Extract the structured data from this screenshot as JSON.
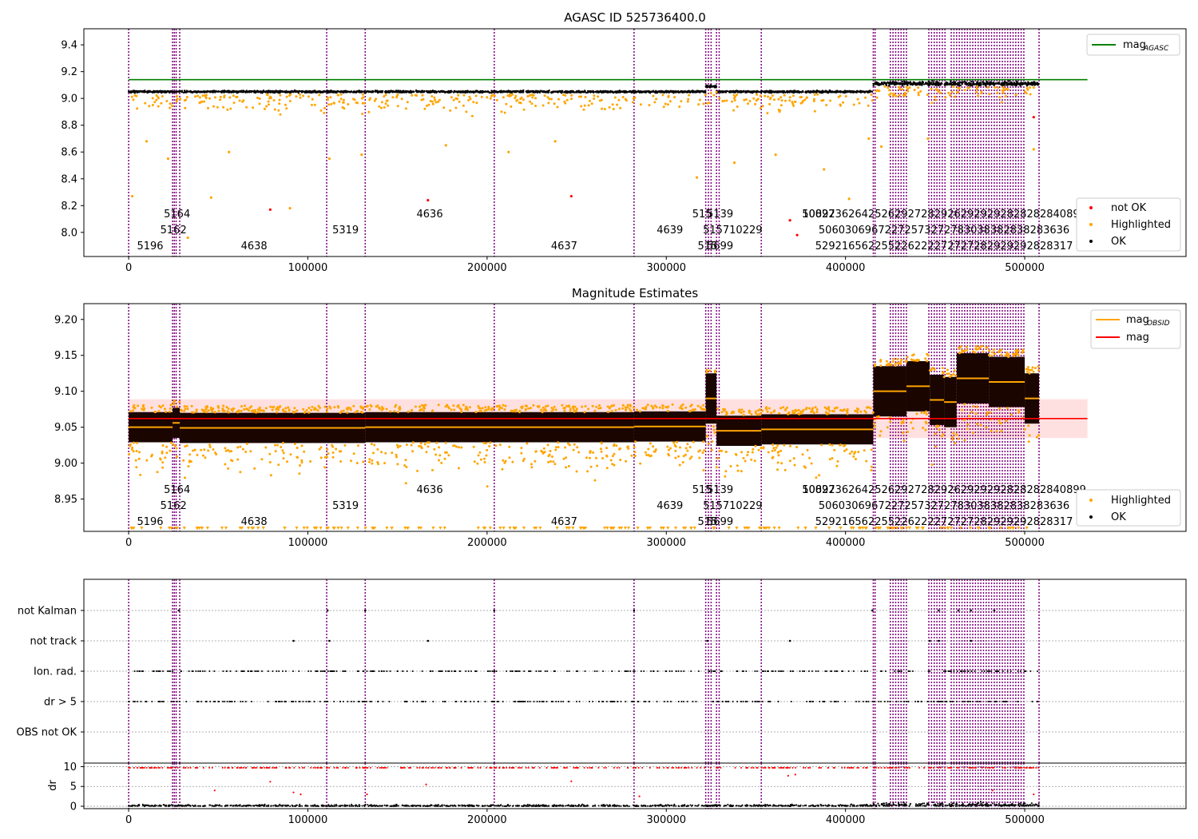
{
  "chart_data": [
    {
      "type": "scatter",
      "title": "AGASC ID 525736400.0",
      "xlabel": "",
      "ylabel": "",
      "xlim": [
        -25000,
        590000
      ],
      "ylim": [
        7.82,
        9.52
      ],
      "xticks": [
        0,
        100000,
        200000,
        300000,
        400000,
        500000
      ],
      "xtick_labels": [
        "0",
        "100000",
        "200000",
        "300000",
        "400000",
        "500000"
      ],
      "yticks": [
        8.0,
        8.2,
        8.4,
        8.6,
        8.8,
        9.0,
        9.2,
        9.4
      ],
      "ytick_labels": [
        "8.0",
        "8.2",
        "8.4",
        "8.6",
        "8.8",
        "9.0",
        "9.2",
        "9.4"
      ],
      "hline": {
        "name": "mag_AGASC",
        "y": 9.14,
        "x_range": [
          0,
          535000
        ],
        "color": "#008000"
      },
      "legend_lines": {
        "label": "mag",
        "subscript": "AGASC",
        "position": "top-right"
      },
      "legend_points": {
        "entries": [
          "not OK",
          "Highlighted",
          "OK"
        ],
        "colors": [
          "#ff0000",
          "#ffa500",
          "#000000"
        ],
        "position": "bottom-right"
      },
      "segments": [
        {
          "x0": 0,
          "x1": 322000,
          "ok_mag": 9.05,
          "spread": 0.02
        },
        {
          "x0": 322000,
          "x1": 328000,
          "ok_mag": 9.09,
          "spread": 0.03
        },
        {
          "x0": 328000,
          "x1": 415500,
          "ok_mag": 9.05,
          "spread": 0.02
        },
        {
          "x0": 415500,
          "x1": 508000,
          "ok_mag": 9.11,
          "spread": 0.04
        }
      ],
      "not_ok_points": [
        {
          "x": 79000,
          "y": 8.17
        },
        {
          "x": 167000,
          "y": 8.24
        },
        {
          "x": 247000,
          "y": 8.27
        },
        {
          "x": 369000,
          "y": 8.09
        },
        {
          "x": 373000,
          "y": 7.98
        },
        {
          "x": 505000,
          "y": 8.86
        }
      ],
      "highlighted_outliers": [
        {
          "x": 2000,
          "y": 8.27
        },
        {
          "x": 10000,
          "y": 8.68
        },
        {
          "x": 22000,
          "y": 8.55
        },
        {
          "x": 33000,
          "y": 7.96
        },
        {
          "x": 46000,
          "y": 8.26
        },
        {
          "x": 56000,
          "y": 8.6
        },
        {
          "x": 90000,
          "y": 8.18
        },
        {
          "x": 112000,
          "y": 8.55
        },
        {
          "x": 130000,
          "y": 8.58
        },
        {
          "x": 177000,
          "y": 8.65
        },
        {
          "x": 212000,
          "y": 8.6
        },
        {
          "x": 238000,
          "y": 8.68
        },
        {
          "x": 317000,
          "y": 8.41
        },
        {
          "x": 338000,
          "y": 8.52
        },
        {
          "x": 361000,
          "y": 8.58
        },
        {
          "x": 388000,
          "y": 8.47
        },
        {
          "x": 402000,
          "y": 8.25
        },
        {
          "x": 413000,
          "y": 8.7
        },
        {
          "x": 420000,
          "y": 8.64
        },
        {
          "x": 446000,
          "y": 8.7
        },
        {
          "x": 505000,
          "y": 8.62
        }
      ],
      "obsid_labels": [
        {
          "text": "5196",
          "x": 12000,
          "row": 3
        },
        {
          "text": "5162",
          "x": 25000,
          "row": 2
        },
        {
          "text": "5164",
          "x": 27000,
          "row": 1
        },
        {
          "text": "4638",
          "x": 70000,
          "row": 3
        },
        {
          "text": "5319",
          "x": 121000,
          "row": 2
        },
        {
          "text": "4636",
          "x": 168000,
          "row": 1
        },
        {
          "text": "4637",
          "x": 243000,
          "row": 3
        },
        {
          "text": "4639",
          "x": 302000,
          "row": 2
        },
        {
          "text": "515",
          "x": 320000,
          "row": 1
        },
        {
          "text": "5139",
          "x": 330000,
          "row": 1
        },
        {
          "text": "515710229",
          "x": 337000,
          "row": 2
        },
        {
          "text": "515",
          "x": 323000,
          "row": 3
        },
        {
          "text": "5699",
          "x": 330000,
          "row": 3
        },
        {
          "text": "10892",
          "x": 385000,
          "row": 1
        },
        {
          "text": "5002736264252629272829262929292828282840899",
          "x": 455000,
          "row": 1
        },
        {
          "text": "50603069672272573272783038382838283636",
          "x": 455000,
          "row": 2
        },
        {
          "text": "529216562255226222272727282929292828317",
          "x": 455000,
          "row": 3
        }
      ]
    },
    {
      "type": "scatter",
      "title": "Magnitude Estimates",
      "xlabel": "",
      "ylabel": "",
      "xlim": [
        -25000,
        590000
      ],
      "ylim": [
        8.905,
        9.222
      ],
      "xticks": [
        0,
        100000,
        200000,
        300000,
        400000,
        500000
      ],
      "xtick_labels": [
        "0",
        "100000",
        "200000",
        "300000",
        "400000",
        "500000"
      ],
      "yticks": [
        8.95,
        9.0,
        9.05,
        9.1,
        9.15,
        9.2
      ],
      "ytick_labels": [
        "8.95",
        "9.00",
        "9.05",
        "9.10",
        "9.15",
        "9.20"
      ],
      "mag": {
        "value": 9.062,
        "band": [
          9.035,
          9.089
        ],
        "x_range": [
          0,
          535000
        ],
        "color": "#ff0000"
      },
      "mag_obsid": [
        {
          "x0": 0,
          "x1": 24500,
          "y": 9.05
        },
        {
          "x0": 24500,
          "x1": 28500,
          "y": 9.056
        },
        {
          "x0": 28500,
          "x1": 132000,
          "y": 9.049
        },
        {
          "x0": 132000,
          "x1": 282000,
          "y": 9.05
        },
        {
          "x0": 282000,
          "x1": 322000,
          "y": 9.051
        },
        {
          "x0": 322000,
          "x1": 328000,
          "y": 9.09
        },
        {
          "x0": 328000,
          "x1": 353000,
          "y": 9.045
        },
        {
          "x0": 353000,
          "x1": 415500,
          "y": 9.047
        },
        {
          "x0": 415500,
          "x1": 426000,
          "y": 9.1
        },
        {
          "x0": 426000,
          "x1": 434000,
          "y": 9.1
        },
        {
          "x0": 434000,
          "x1": 447000,
          "y": 9.107
        },
        {
          "x0": 447000,
          "x1": 455000,
          "y": 9.088
        },
        {
          "x0": 455000,
          "x1": 462000,
          "y": 9.085
        },
        {
          "x0": 462000,
          "x1": 480000,
          "y": 9.118
        },
        {
          "x0": 480000,
          "x1": 500000,
          "y": 9.113
        },
        {
          "x0": 500000,
          "x1": 508000,
          "y": 9.09
        }
      ],
      "legend_lines": {
        "labels": [
          "mag_OBSID",
          "mag"
        ],
        "colors": [
          "#ffa500",
          "#ff0000"
        ],
        "position": "top-right"
      },
      "legend_points": {
        "entries": [
          "Highlighted",
          "OK"
        ],
        "colors": [
          "#ffa500",
          "#000000"
        ],
        "position": "bottom-right"
      },
      "obsid_labels": "same as panel 1"
    },
    {
      "type": "scatter",
      "title": "",
      "flag_rows": [
        "not Kalman",
        "not track",
        "Ion. rad.",
        "dr > 5",
        "OBS not OK"
      ],
      "flag_segments": {
        "Ion. rad.": [
          [
            0,
            322000
          ],
          [
            322000,
            508000
          ]
        ],
        "dr > 5": [
          [
            0,
            322000
          ],
          [
            322000,
            508000
          ]
        ]
      },
      "flag_sparse_points": {
        "not Kalman": [
          28000,
          111000,
          132000,
          204000,
          282000,
          415000,
          452000,
          463000,
          470000,
          483000
        ],
        "not track": [
          92000,
          112000,
          167000,
          323000,
          369000,
          447000,
          452000,
          470000
        ]
      }
    },
    {
      "type": "scatter",
      "title": "",
      "ylabel": "dr",
      "xlim": [
        -25000,
        590000
      ],
      "ylim": [
        -0.6,
        10.9
      ],
      "yticks": [
        0,
        5,
        10
      ],
      "ytick_labels": [
        "0",
        "5",
        "10"
      ],
      "xticks": [
        0,
        100000,
        200000,
        300000,
        400000,
        500000
      ],
      "xtick_labels": [
        "0",
        "100000",
        "200000",
        "300000",
        "400000",
        "500000"
      ],
      "clip_value": 9.7,
      "dr_outliers": [
        {
          "x": 79000,
          "y": 6.2
        },
        {
          "x": 92000,
          "y": 3.5
        },
        {
          "x": 96000,
          "y": 3.0
        },
        {
          "x": 166000,
          "y": 5.5
        },
        {
          "x": 247000,
          "y": 6.3
        },
        {
          "x": 368000,
          "y": 7.7
        },
        {
          "x": 372000,
          "y": 8.0
        },
        {
          "x": 48000,
          "y": 4.0
        },
        {
          "x": 133000,
          "y": 3.0
        },
        {
          "x": 285000,
          "y": 2.5
        },
        {
          "x": 482000,
          "y": 4.0
        },
        {
          "x": 505000,
          "y": 3.0
        }
      ]
    }
  ],
  "obsid_boundaries": [
    0,
    24500,
    25500,
    26500,
    28500,
    110500,
    132000,
    204000,
    282000,
    322000,
    323500,
    325000,
    328000,
    329500,
    353000,
    415500,
    416500,
    425000,
    426500,
    428000,
    429500,
    431000,
    432500,
    434000,
    446500,
    448000,
    449500,
    451000,
    452500,
    454000,
    455500,
    459000,
    460500,
    462000,
    463500,
    465000,
    466500,
    468000,
    469500,
    471000,
    472500,
    474000,
    475500,
    477000,
    478500,
    480000,
    481500,
    483000,
    484500,
    486000,
    487500,
    489000,
    490500,
    492000,
    493500,
    495000,
    496500,
    498000,
    499500,
    508000
  ]
}
